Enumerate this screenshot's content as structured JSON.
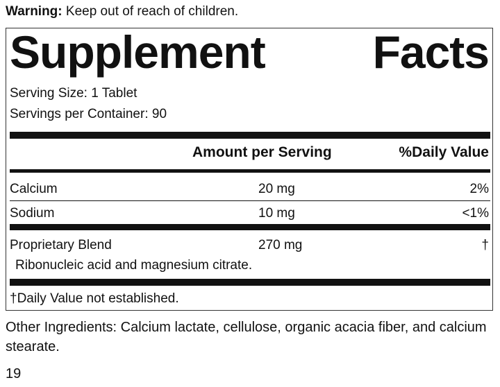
{
  "warning": {
    "label": "Warning:",
    "text": "Keep out of reach of children."
  },
  "title": "Supplement Facts",
  "serving_size": "Serving Size: 1 Tablet",
  "servings_per_container": "Servings per Container: 90",
  "table": {
    "header": [
      "Amount per Serving",
      "%Daily Value"
    ],
    "rows": [
      [
        "Calcium",
        "20 mg",
        "2%"
      ],
      [
        "Sodium",
        "10 mg",
        "<1%"
      ],
      [
        "Proprietary Blend",
        "270 mg",
        "†"
      ]
    ],
    "blend_note": "Ribonucleic acid and magnesium citrate."
  },
  "footnote": "†Daily Value not established.",
  "other_ingredients": "Other Ingredients: Calcium lactate, cellulose, organic acacia fiber, and calcium stearate.",
  "page_number": "19"
}
